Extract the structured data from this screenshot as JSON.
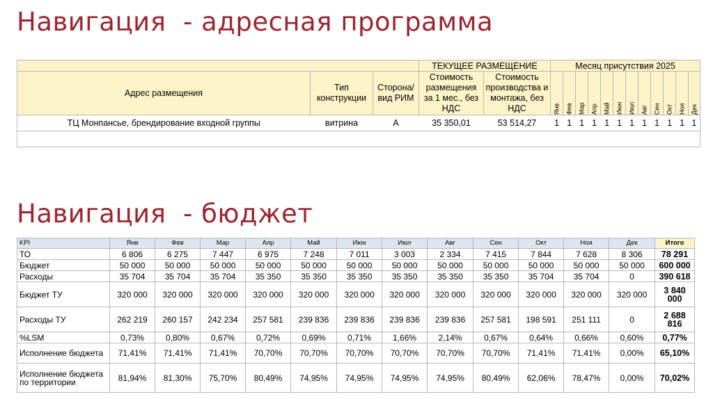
{
  "title1": "Навигация  - адресная программа",
  "title2": "Навигация  - бюджет",
  "address": {
    "group_header": "ТЕКУЩЕЕ РАЗМЕЩЕНИЕ",
    "month_header": "Месяц присутствия 2025",
    "columns": {
      "address": "Адрес размещения",
      "type": "Тип конструкции",
      "side": "Сторона/ вид РИМ",
      "cost": "Стоимость размещения за 1 мес., без НДС",
      "prod": "Стоимость производства и монтажа, без НДС"
    },
    "months": [
      "Янв",
      "Фев",
      "Мар",
      "Апр",
      "Май",
      "Июн",
      "Июл",
      "Авг",
      "Сен",
      "Окт",
      "Ноя",
      "Дек"
    ],
    "rows": [
      {
        "address": "ТЦ Монпансье, брендирование входной группы",
        "type": "витрина",
        "side": "А",
        "cost": "35 350,01",
        "prod": "53 514,27",
        "months": [
          "1",
          "1",
          "1",
          "1",
          "1",
          "1",
          "1",
          "1",
          "1",
          "1",
          "1",
          "1"
        ]
      }
    ]
  },
  "budget": {
    "kpi_label": "KPI",
    "months": [
      "Янв",
      "Фев",
      "Мар",
      "Апр",
      "Май",
      "Июн",
      "Июл",
      "Авг",
      "Сен",
      "Окт",
      "Ноя",
      "Дек"
    ],
    "total_label": "Итого",
    "rows": [
      {
        "label": "ТО",
        "values": [
          "6 806",
          "6 275",
          "7 447",
          "6 975",
          "7 248",
          "7 011",
          "3 003",
          "2 334",
          "7 415",
          "7 844",
          "7 628",
          "8 306"
        ],
        "total": "78 291"
      },
      {
        "label": "Бюджет",
        "values": [
          "50 000",
          "50 000",
          "50 000",
          "50 000",
          "50 000",
          "50 000",
          "50 000",
          "50 000",
          "50 000",
          "50 000",
          "50 000",
          "50 000"
        ],
        "total": "600 000"
      },
      {
        "label": "Расходы",
        "values": [
          "35 704",
          "35 704",
          "35 704",
          "35 350",
          "35 350",
          "35 350",
          "35 350",
          "35 350",
          "35 350",
          "35 704",
          "35 704",
          "0"
        ],
        "total": "390 618"
      },
      {
        "label": "Бюджет ТУ",
        "values": [
          "320 000",
          "320 000",
          "320 000",
          "320 000",
          "320 000",
          "320 000",
          "320 000",
          "320 000",
          "320 000",
          "320 000",
          "320 000",
          "320 000"
        ],
        "total": "3 840 000"
      },
      {
        "label": "Расходы ТУ",
        "values": [
          "262 219",
          "260 157",
          "242 234",
          "257 581",
          "239 836",
          "239 836",
          "239 836",
          "239 836",
          "257 581",
          "198 591",
          "251 111",
          "0"
        ],
        "total": "2 688 816"
      },
      {
        "label": "%LSM",
        "values": [
          "0,73%",
          "0,80%",
          "0,67%",
          "0,72%",
          "0,69%",
          "0,71%",
          "1,66%",
          "2,14%",
          "0,67%",
          "0,64%",
          "0,66%",
          "0,60%"
        ],
        "total": "0,77%"
      },
      {
        "label": "Исполнение бюджета",
        "values": [
          "71,41%",
          "71,41%",
          "71,41%",
          "70,70%",
          "70,70%",
          "70,70%",
          "70,70%",
          "70,70%",
          "70,70%",
          "71,41%",
          "71,41%",
          "0,00%"
        ],
        "total": "65,10%"
      },
      {
        "label": "Исполнение бюджета по территории",
        "values": [
          "81,94%",
          "81,30%",
          "75,70%",
          "80,49%",
          "74,95%",
          "74,95%",
          "74,95%",
          "74,95%",
          "80,49%",
          "62,06%",
          "78,47%",
          "0,00%"
        ],
        "total": "70,02%"
      }
    ]
  }
}
